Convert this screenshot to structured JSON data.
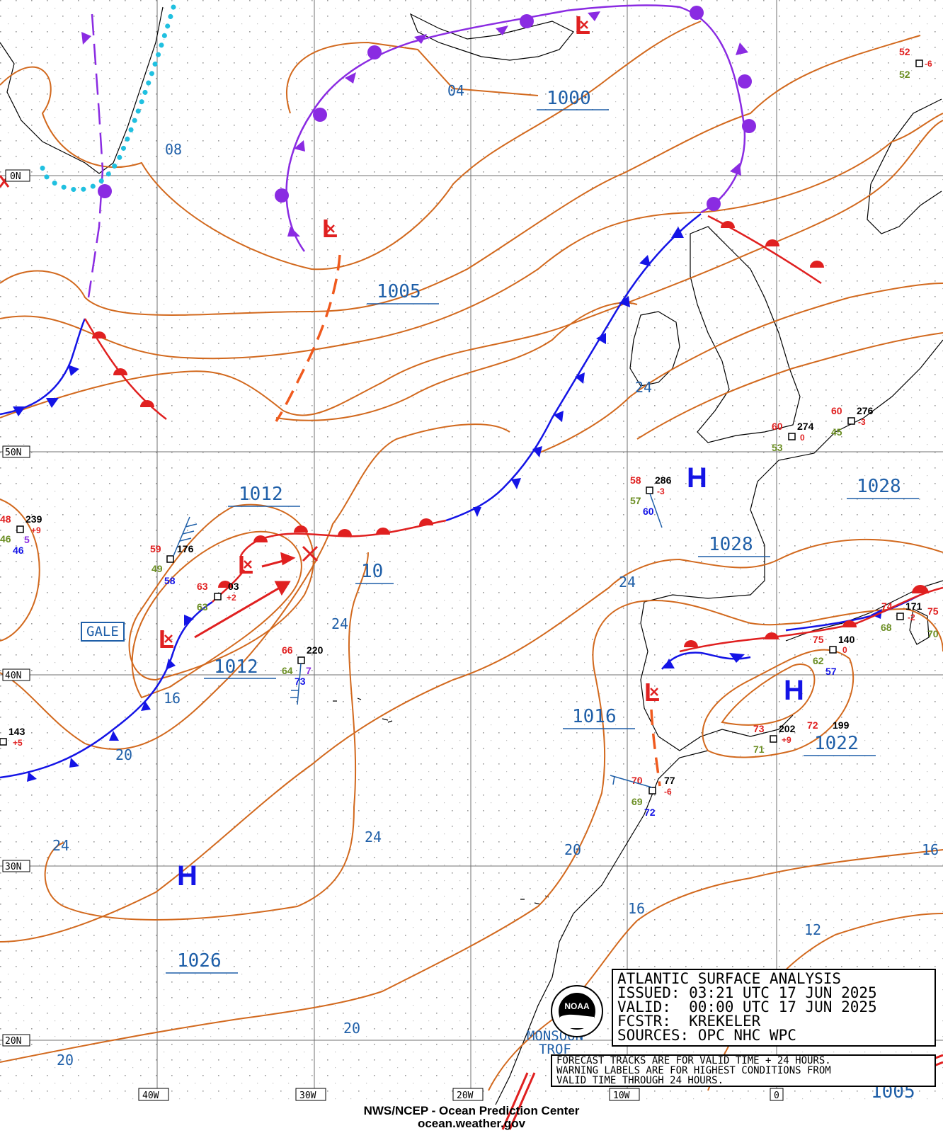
{
  "title_block": {
    "title": "ATLANTIC SURFACE ANALYSIS",
    "issued": "ISSUED: 03:21 UTC 17 JUN 2025",
    "valid": "VALID:  00:00 UTC 17 JUN 2025",
    "forecaster": "FCSTR:  KREKELER",
    "sources": "SOURCES: OPC NHC WPC"
  },
  "notes": [
    "FORECAST TRACKS ARE FOR VALID TIME + 24 HOURS.",
    "WARNING LABELS ARE FOR HIGHEST CONDITIONS FROM",
    "VALID TIME THROUGH 24 HOURS."
  ],
  "footer": {
    "line1": "NWS/NCEP - Ocean Prediction Center",
    "line2": "ocean.weather.gov"
  },
  "logo_text": "NOAA",
  "warning_label": "GALE",
  "monsoon_label": "MONSOON TROF",
  "grid_labels": {
    "latitudes": [
      "0N",
      "50N",
      "40N",
      "30N",
      "20N"
    ],
    "longitudes": [
      "40W",
      "30W",
      "20W",
      "10W",
      "0"
    ]
  },
  "pressure_labels": {
    "p1000": "1000",
    "p1005": "1005",
    "p1012a": "1012",
    "p1012b": "1012",
    "p10": "10",
    "p1028a": "1028",
    "p1028b": "1028",
    "p1016": "1016",
    "p1022": "1022",
    "p1026": "1026",
    "p1005b": "1005",
    "i04": "04",
    "i08": "08",
    "i24a": "24",
    "i24b": "24",
    "i24c": "24",
    "i24d": "24",
    "i24e": "24",
    "i16a": "16",
    "i16b": "16",
    "i16c": "16",
    "i20a": "20",
    "i20b": "20",
    "i20c": "20",
    "i20d": "20",
    "i12": "12"
  },
  "pressure_centers": [
    {
      "type": "H",
      "label": "H"
    },
    {
      "type": "H",
      "label": "H"
    },
    {
      "type": "H",
      "label": "H"
    },
    {
      "type": "L",
      "label": "L"
    },
    {
      "type": "L",
      "label": "L"
    },
    {
      "type": "L",
      "label": "L"
    },
    {
      "type": "L",
      "label": "L"
    },
    {
      "type": "L",
      "label": "L"
    }
  ],
  "station_obs": [
    {
      "pressure": "239",
      "temp": "48",
      "dew": "46",
      "tend": "+9",
      "other": "46",
      "extra": "5"
    },
    {
      "pressure": "176",
      "temp": "59",
      "dew": "49",
      "other": "58"
    },
    {
      "pressure": "03",
      "temp": "63",
      "dew": "63",
      "tend": "+2"
    },
    {
      "pressure": "220",
      "temp": "66",
      "dew": "64",
      "other": "73",
      "extra": "7"
    },
    {
      "pressure": "143",
      "tend": "+5"
    },
    {
      "pressure": "286",
      "temp": "58",
      "dew": "57",
      "tend": "-3",
      "other": "60"
    },
    {
      "pressure": "274",
      "temp": "60",
      "dew": "53",
      "tend": "0"
    },
    {
      "pressure": "276",
      "temp": "60",
      "dew": "45",
      "tend": "-3"
    },
    {
      "pressure": "140",
      "temp": "75",
      "dew": "62",
      "tend": "0",
      "other": "57"
    },
    {
      "pressure": "171",
      "temp": "74",
      "dew": "68",
      "tend": "-2"
    },
    {
      "pressure": "202",
      "temp": "73",
      "dew": "71",
      "tend": "+9"
    },
    {
      "pressure": "199",
      "temp": "72"
    },
    {
      "pressure": "77",
      "temp": "70",
      "dew": "69",
      "tend": "-6",
      "other": "72"
    },
    {
      "temp": "52",
      "dew": "52",
      "tend": "-6"
    },
    {
      "temp": "75",
      "dew": "70"
    }
  ],
  "colors": {
    "isobar": "#d2691e",
    "cold_front": "#1414e6",
    "warm_front": "#e02020",
    "occluded_front": "#8a2be2",
    "trough": "#f05a1e",
    "label_blue": "#1f5fa8",
    "grid": "#808080"
  }
}
